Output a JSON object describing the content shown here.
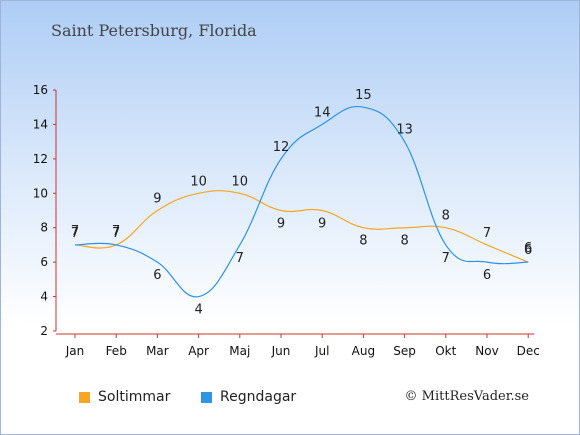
{
  "page": {
    "title": "Saint Petersburg, Florida",
    "copyright": "© MittResVader.se"
  },
  "legend": [
    {
      "label": "Soltimmar",
      "color": "#f5a623"
    },
    {
      "label": "Regndagar",
      "color": "#2f93e6"
    }
  ],
  "chart_data": {
    "type": "line",
    "title": "Saint Petersburg, Florida",
    "xlabel": "",
    "ylabel": "",
    "categories": [
      "Jan",
      "Feb",
      "Mar",
      "Apr",
      "Maj",
      "Jun",
      "Jul",
      "Aug",
      "Sep",
      "Okt",
      "Nov",
      "Dec"
    ],
    "yticks": [
      2,
      4,
      6,
      8,
      10,
      12,
      14,
      16
    ],
    "ylim": [
      2,
      16
    ],
    "grid": false,
    "legend_position": "bottom-left",
    "series": [
      {
        "name": "Soltimmar",
        "color": "#f5a623",
        "values": [
          7,
          7,
          9,
          10,
          10,
          9,
          9,
          8,
          8,
          8,
          7,
          6
        ]
      },
      {
        "name": "Regndagar",
        "color": "#2f93e6",
        "values": [
          7,
          7,
          6,
          4,
          7,
          12,
          14,
          15,
          13,
          7,
          6,
          6
        ]
      }
    ]
  }
}
